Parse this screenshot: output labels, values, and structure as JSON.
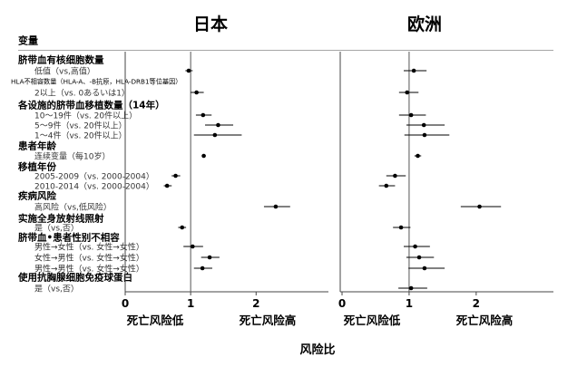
{
  "chart_data": {
    "type": "forest",
    "panels": [
      {
        "title": "日本",
        "xlim": [
          0,
          2.8
        ],
        "ticks": [
          0,
          1,
          2
        ],
        "reference": 1,
        "values": [
          {
            "est": 0.97,
            "lo": 0.92,
            "hi": 1.03
          },
          {
            "est": 1.09,
            "lo": 1.0,
            "hi": 1.2
          },
          {
            "est": 1.19,
            "lo": 1.08,
            "hi": 1.32
          },
          {
            "est": 1.42,
            "lo": 1.22,
            "hi": 1.65
          },
          {
            "est": 1.37,
            "lo": 1.05,
            "hi": 1.78
          },
          {
            "est": 1.2,
            "lo": 1.17,
            "hi": 1.23
          },
          {
            "est": 0.77,
            "lo": 0.71,
            "hi": 0.84
          },
          {
            "est": 0.64,
            "lo": 0.59,
            "hi": 0.71
          },
          {
            "est": 2.3,
            "lo": 2.12,
            "hi": 2.52
          },
          {
            "est": 0.87,
            "lo": 0.81,
            "hi": 0.93
          },
          {
            "est": 1.03,
            "lo": 0.89,
            "hi": 1.19
          },
          {
            "est": 1.29,
            "lo": 1.16,
            "hi": 1.44
          },
          {
            "est": 1.18,
            "lo": 1.05,
            "hi": 1.33
          },
          null
        ]
      },
      {
        "title": "欧洲",
        "xlim": [
          0,
          2.8
        ],
        "ticks": [
          0,
          1,
          2
        ],
        "reference": 1,
        "values": [
          {
            "est": 1.07,
            "lo": 0.92,
            "hi": 1.26
          },
          {
            "est": 0.97,
            "lo": 0.85,
            "hi": 1.14
          },
          {
            "est": 1.03,
            "lo": 0.85,
            "hi": 1.25
          },
          {
            "est": 1.22,
            "lo": 0.96,
            "hi": 1.53
          },
          {
            "est": 1.23,
            "lo": 0.93,
            "hi": 1.6
          },
          {
            "est": 1.13,
            "lo": 1.08,
            "hi": 1.18
          },
          {
            "est": 0.79,
            "lo": 0.66,
            "hi": 0.95
          },
          {
            "est": 0.66,
            "lo": 0.55,
            "hi": 0.79
          },
          {
            "est": 2.05,
            "lo": 1.77,
            "hi": 2.37
          },
          {
            "est": 0.88,
            "lo": 0.76,
            "hi": 1.02
          },
          {
            "est": 1.09,
            "lo": 0.92,
            "hi": 1.31
          },
          {
            "est": 1.15,
            "lo": 0.96,
            "hi": 1.37
          },
          {
            "est": 1.23,
            "lo": 0.99,
            "hi": 1.53
          },
          {
            "est": 1.03,
            "lo": 0.84,
            "hi": 1.27
          }
        ]
      }
    ],
    "rows": [
      {
        "kind": "header",
        "label": "变量"
      },
      {
        "kind": "group",
        "label": "脐带血有核细胞数量"
      },
      {
        "kind": "item",
        "label": "低值（vs,高值）",
        "idx": 0
      },
      {
        "kind": "item",
        "label": "HLA不相容数量（HLA-A、-B抗原，HLA-DRB1等位基因）",
        "small": true
      },
      {
        "kind": "item",
        "label": "2以上（vs. 0あるいは1）",
        "idx": 1
      },
      {
        "kind": "group",
        "label": "各设施的脐带血移植数量（14年）"
      },
      {
        "kind": "item",
        "label": "10～19件（vs. 20件以上）",
        "idx": 2
      },
      {
        "kind": "item",
        "label": "5～9件（vs. 20件以上）",
        "idx": 3
      },
      {
        "kind": "item",
        "label": "1～4件（vs. 20件以上）",
        "idx": 4
      },
      {
        "kind": "group",
        "label": "患者年龄"
      },
      {
        "kind": "item",
        "label": "连续变量（每10岁）",
        "idx": 5
      },
      {
        "kind": "group",
        "label": "移植年份"
      },
      {
        "kind": "item",
        "label": "2005-2009（vs. 2000-2004）",
        "idx": 6
      },
      {
        "kind": "item",
        "label": "2010-2014（vs. 2000-2004）",
        "idx": 7
      },
      {
        "kind": "group",
        "label": "疾病风险"
      },
      {
        "kind": "item",
        "label": "高风险（vs,低风险）",
        "idx": 8
      },
      {
        "kind": "group",
        "label": "实施全身放射线照射"
      },
      {
        "kind": "item",
        "label": "是（vs,否）",
        "idx": 9
      },
      {
        "kind": "group",
        "label": "脐带血•患者性别不相容"
      },
      {
        "kind": "item",
        "label": "男性→女性（vs. 女性→女性）",
        "idx": 10
      },
      {
        "kind": "item",
        "label": "女性→男性（vs. 女性→女性）",
        "idx": 11
      },
      {
        "kind": "item",
        "label": "男性→男性（vs. 女性→女性）",
        "idx": 12
      },
      {
        "kind": "group",
        "label": "使用抗胸腺细胞免疫球蛋白"
      },
      {
        "kind": "item",
        "label": "是（vs,否）",
        "idx": 13
      }
    ],
    "direction_labels": {
      "left": "死亡风险低",
      "right": "死亡风险高"
    },
    "xlabel": "风险比"
  }
}
